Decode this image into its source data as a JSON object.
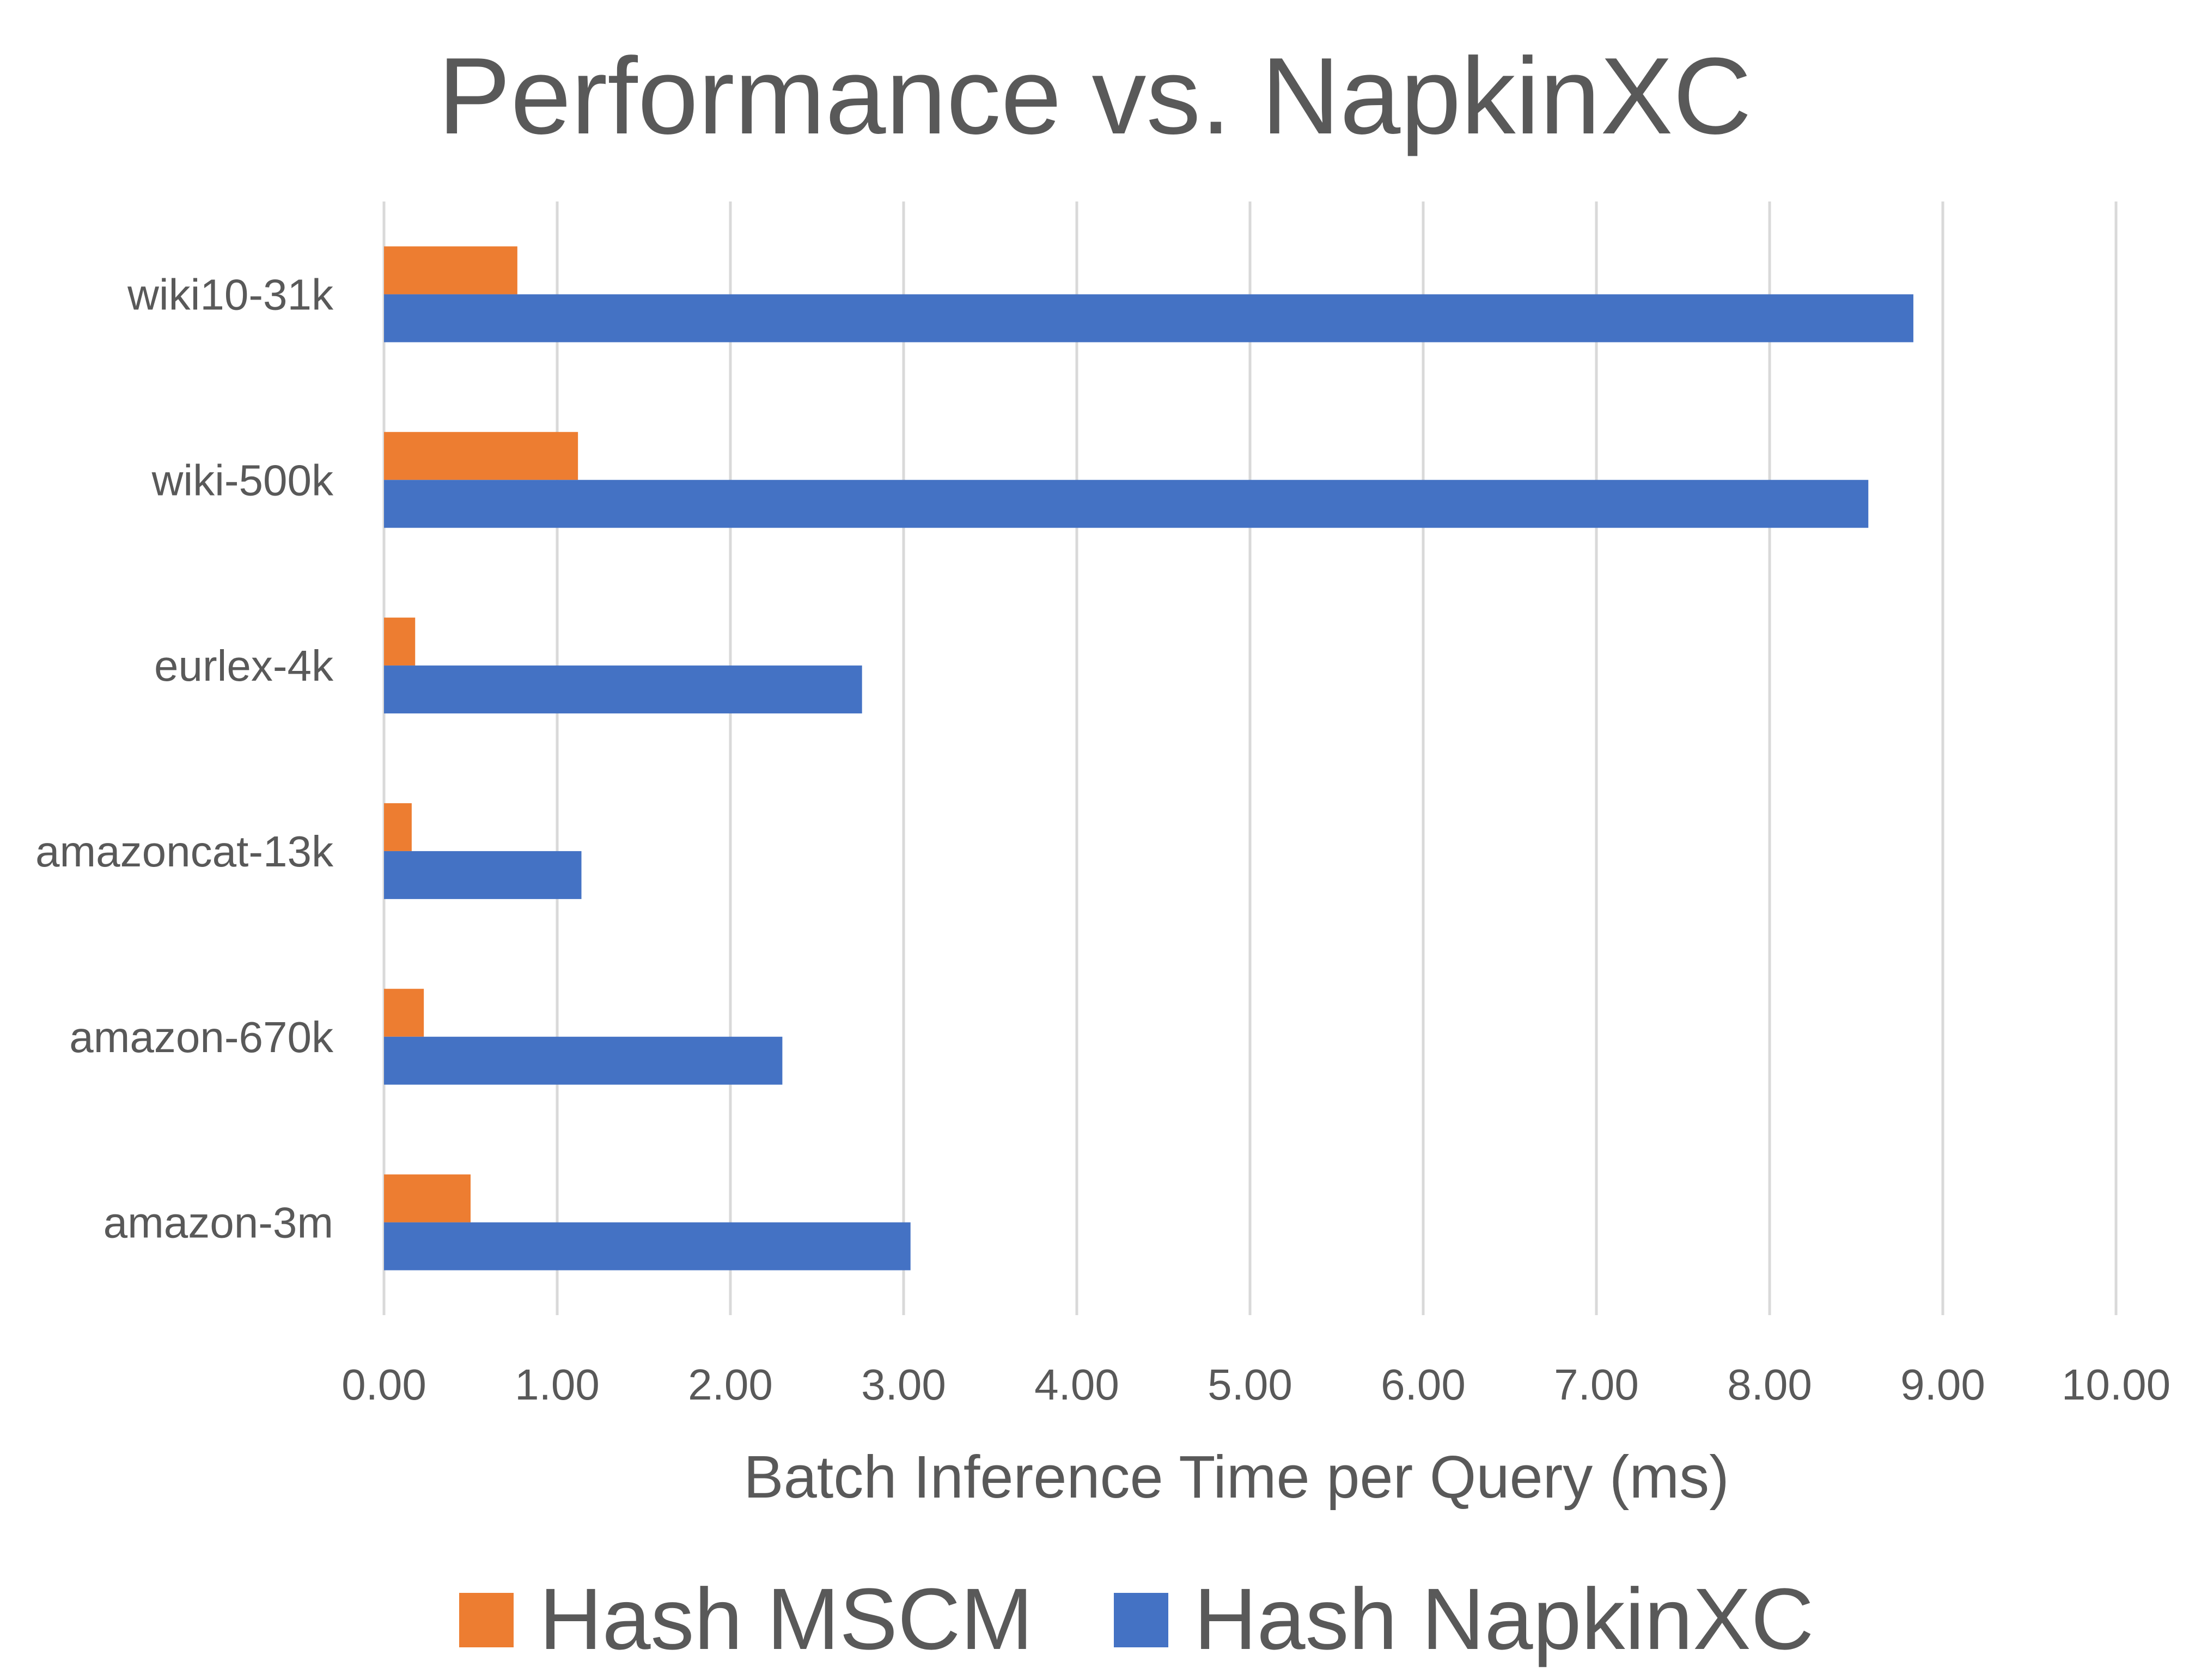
{
  "chart_data": {
    "type": "bar",
    "orientation": "horizontal",
    "title": "Performance vs. NapkinXC",
    "xlabel": "Batch Inference Time per Query (ms)",
    "ylabel": "",
    "categories": [
      "wiki10-31k",
      "wiki-500k",
      "eurlex-4k",
      "amazoncat-13k",
      "amazon-670k",
      "amazon-3m"
    ],
    "series": [
      {
        "name": "Hash MSCM",
        "color": "#ED7D31",
        "values": [
          0.77,
          1.12,
          0.18,
          0.16,
          0.23,
          0.5
        ]
      },
      {
        "name": "Hash NapkinXC",
        "color": "#4472C4",
        "values": [
          8.83,
          8.57,
          2.76,
          1.14,
          2.3,
          3.04
        ]
      }
    ],
    "xlim": [
      0,
      10
    ],
    "xticks": [
      0,
      1,
      2,
      3,
      4,
      5,
      6,
      7,
      8,
      9,
      10
    ],
    "xtick_labels": [
      "0.00",
      "1.00",
      "2.00",
      "3.00",
      "4.00",
      "5.00",
      "6.00",
      "7.00",
      "8.00",
      "9.00",
      "10.00"
    ],
    "grid": "vertical",
    "legend_position": "bottom",
    "gridline_color": "#D9D9D9",
    "text_color": "#595959"
  }
}
